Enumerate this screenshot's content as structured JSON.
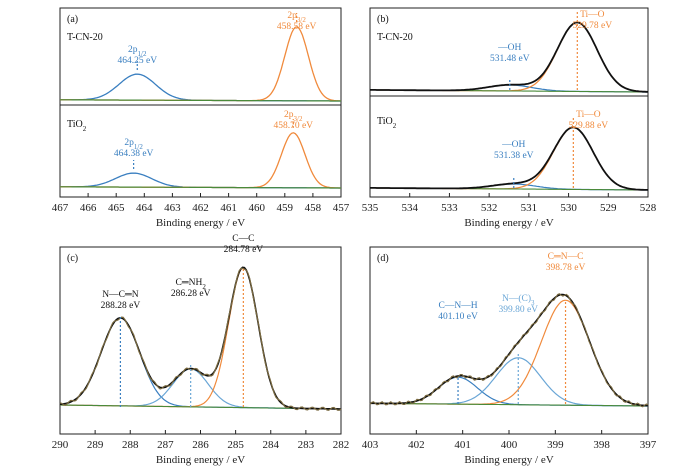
{
  "colors": {
    "blue": "#3a7fc0",
    "orange": "#f08a3c",
    "green": "#4a8a3a",
    "black": "#111111",
    "raw": "#7a6a40",
    "light_blue": "#6aa6d6"
  },
  "panels": [
    {
      "key": "a",
      "label": "(a)",
      "xlabel": "Binding energy / eV",
      "ticks": [
        "467",
        "466",
        "465",
        "464",
        "463",
        "462",
        "461",
        "460",
        "459",
        "458",
        "457"
      ],
      "xlim": [
        467,
        457
      ],
      "sub": [
        {
          "sample": "T-CN-20",
          "peaks": [
            {
              "name": "2p1/2",
              "base": "2p",
              "subscript": "1/2",
              "energy": 464.25,
              "text": "464.25 eV",
              "color": "blue"
            },
            {
              "name": "2p3/2",
              "base": "2p",
              "subscript": "3/2",
              "energy": 458.58,
              "text": "458.58 eV",
              "color": "orange"
            }
          ]
        },
        {
          "sample": "TiO2",
          "sample_base": "TiO",
          "sample_sub": "2",
          "peaks": [
            {
              "name": "2p1/2",
              "base": "2p",
              "subscript": "1/2",
              "energy": 464.38,
              "text": "464.38 eV",
              "color": "blue"
            },
            {
              "name": "2p3/2",
              "base": "2p",
              "subscript": "3/2",
              "energy": 458.7,
              "text": "458.70 eV",
              "color": "orange"
            }
          ]
        }
      ]
    },
    {
      "key": "b",
      "label": "(b)",
      "xlabel": "Binding energy / eV",
      "ticks": [
        "535",
        "534",
        "533",
        "532",
        "531",
        "530",
        "529",
        "528"
      ],
      "xlim": [
        535,
        528
      ],
      "sub": [
        {
          "sample": "T-CN-20",
          "peaks": [
            {
              "name": "—OH",
              "energy": 531.48,
              "text": "531.48 eV",
              "color": "blue"
            },
            {
              "name": "Ti—O",
              "energy": 529.78,
              "text": "529.78 eV",
              "color": "orange"
            }
          ]
        },
        {
          "sample": "TiO2",
          "sample_base": "TiO",
          "sample_sub": "2",
          "peaks": [
            {
              "name": "—OH",
              "energy": 531.38,
              "text": "531.38 eV",
              "color": "blue"
            },
            {
              "name": "Ti—O",
              "energy": 529.88,
              "text": "529.88 eV",
              "color": "orange"
            }
          ]
        }
      ]
    },
    {
      "key": "c",
      "label": "(c)",
      "xlabel": "Binding energy / eV",
      "ticks": [
        "290",
        "289",
        "288",
        "287",
        "286",
        "285",
        "284",
        "283",
        "282"
      ],
      "xlim": [
        290,
        282
      ],
      "peaks": [
        {
          "name": "N—C═N",
          "energy": 288.28,
          "text": "288.28 eV",
          "color": "blue"
        },
        {
          "name": "C═NH2",
          "base": "C═NH",
          "subscript": "2",
          "energy": 286.28,
          "text": "286.28 eV",
          "color": "light_blue"
        },
        {
          "name": "C—C",
          "energy": 284.78,
          "text": "284.78 eV",
          "color": "orange"
        }
      ]
    },
    {
      "key": "d",
      "label": "(d)",
      "xlabel": "Binding energy / eV",
      "ticks": [
        "403",
        "402",
        "401",
        "400",
        "399",
        "398",
        "397"
      ],
      "xlim": [
        403,
        397
      ],
      "peaks": [
        {
          "name": "C—N—H",
          "energy": 401.1,
          "text": "401.10 eV",
          "color": "blue"
        },
        {
          "name": "N—(C)3",
          "base": "N—(C)",
          "subscript": "3",
          "energy": 399.8,
          "text": "399.80 eV",
          "color": "light_blue"
        },
        {
          "name": "C═N—C",
          "energy": 398.78,
          "text": "398.78 eV",
          "color": "orange"
        }
      ]
    }
  ],
  "chart_data": [
    {
      "type": "line",
      "panel": "a",
      "xlabel": "Binding energy / eV",
      "xlim": [
        467,
        457
      ],
      "series": [
        {
          "name": "T-CN-20 2p1/2",
          "peak_x": 464.25
        },
        {
          "name": "T-CN-20 2p3/2",
          "peak_x": 458.58
        },
        {
          "name": "TiO2 2p1/2",
          "peak_x": 464.38
        },
        {
          "name": "TiO2 2p3/2",
          "peak_x": 458.7
        }
      ]
    },
    {
      "type": "line",
      "panel": "b",
      "xlabel": "Binding energy / eV",
      "xlim": [
        535,
        528
      ],
      "series": [
        {
          "name": "T-CN-20 —OH",
          "peak_x": 531.48
        },
        {
          "name": "T-CN-20 Ti—O",
          "peak_x": 529.78
        },
        {
          "name": "TiO2 —OH",
          "peak_x": 531.38
        },
        {
          "name": "TiO2 Ti—O",
          "peak_x": 529.88
        }
      ]
    },
    {
      "type": "line",
      "panel": "c",
      "xlabel": "Binding energy / eV",
      "xlim": [
        290,
        282
      ],
      "series": [
        {
          "name": "N—C═N",
          "peak_x": 288.28
        },
        {
          "name": "C═NH2",
          "peak_x": 286.28
        },
        {
          "name": "C—C",
          "peak_x": 284.78
        }
      ]
    },
    {
      "type": "line",
      "panel": "d",
      "xlabel": "Binding energy / eV",
      "xlim": [
        403,
        397
      ],
      "series": [
        {
          "name": "C—N—H",
          "peak_x": 401.1
        },
        {
          "name": "N—(C)3",
          "peak_x": 399.8
        },
        {
          "name": "C═N—C",
          "peak_x": 398.78
        }
      ]
    }
  ]
}
